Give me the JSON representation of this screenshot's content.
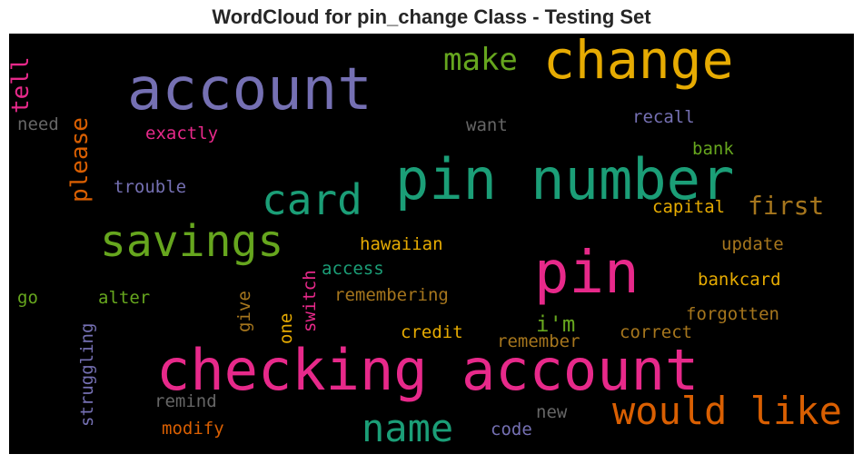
{
  "title": "WordCloud for pin_change Class - Testing Set",
  "colors": {
    "purple": "#7570b3",
    "orange": "#d95f02",
    "teal": "#1b9e77",
    "magenta": "#e7298a",
    "green": "#66a61e",
    "gold": "#e6ab02",
    "brown": "#a6761d",
    "gray": "#666666"
  },
  "words": {
    "account": "account",
    "change": "change",
    "make": "make",
    "tell": "tell",
    "need": "need",
    "exactly": "exactly",
    "want": "want",
    "recall": "recall",
    "please": "please",
    "pin_number": "pin number",
    "bank": "bank",
    "trouble": "trouble",
    "card": "card",
    "first": "first",
    "capital": "capital",
    "savings": "savings",
    "hawaiian": "hawaiian",
    "update": "update",
    "pin": "pin",
    "access": "access",
    "switch": "switch",
    "give": "give",
    "bankcard": "bankcard",
    "go": "go",
    "alter": "alter",
    "remembering": "remembering",
    "one": "one",
    "forgotten": "forgotten",
    "im": "i'm",
    "credit": "credit",
    "correct": "correct",
    "remember": "remember",
    "struggling": "struggling",
    "checking_account": "checking account",
    "remind": "remind",
    "would_like": "would like",
    "name": "name",
    "new": "new",
    "modify": "modify",
    "code": "code"
  }
}
